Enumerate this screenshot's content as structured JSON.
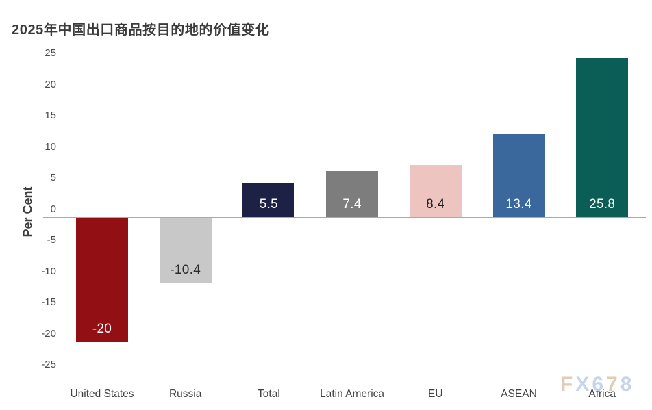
{
  "title": "2025年中国出口商品按目的地的价值变化",
  "y_axis": {
    "label": "Per Cent",
    "ticks": [
      "25",
      "20",
      "15",
      "10",
      "5",
      "0",
      "-5",
      "-10",
      "-15",
      "-20",
      "-25"
    ]
  },
  "watermark": {
    "text": "FX678",
    "letters": [
      {
        "char": "F",
        "color": "#dcc7ae"
      },
      {
        "char": "X",
        "color": "#c2d1ea"
      },
      {
        "char": "6",
        "color": "#c2d1ea"
      },
      {
        "char": "7",
        "color": "#dcc7ae"
      },
      {
        "char": "8",
        "color": "#c2d1ea"
      }
    ]
  },
  "chart_data": {
    "type": "bar",
    "title": "2025年中国出口商品按目的地的价值变化",
    "categories": [
      "United States",
      "Russia",
      "Total",
      "Latin America",
      "EU",
      "ASEAN",
      "Africa"
    ],
    "values": [
      -20,
      -10.4,
      5.5,
      7.4,
      8.4,
      13.4,
      25.8
    ],
    "data_labels": [
      "-20",
      "-10.4",
      "5.5",
      "7.4",
      "8.4",
      "13.4",
      "25.8"
    ],
    "bar_colors": [
      "#920f13",
      "#c8c8c8",
      "#1c2145",
      "#7d7d7d",
      "#edc4c0",
      "#3a689c",
      "#0a5e56"
    ],
    "data_label_colors": [
      "#ffffff",
      "#2b2b2b",
      "#ffffff",
      "#ffffff",
      "#1d1d1d",
      "#ffffff",
      "#ffffff"
    ],
    "xlabel": "",
    "ylabel": "Per Cent",
    "ylim": [
      -25,
      25
    ],
    "yticks": [
      25,
      20,
      15,
      10,
      5,
      0,
      -5,
      -10,
      -15,
      -20,
      -25
    ],
    "grid": false,
    "legend": false,
    "zero_axis_line_color": "#a9a9a9",
    "background_color": "#ffffff"
  }
}
